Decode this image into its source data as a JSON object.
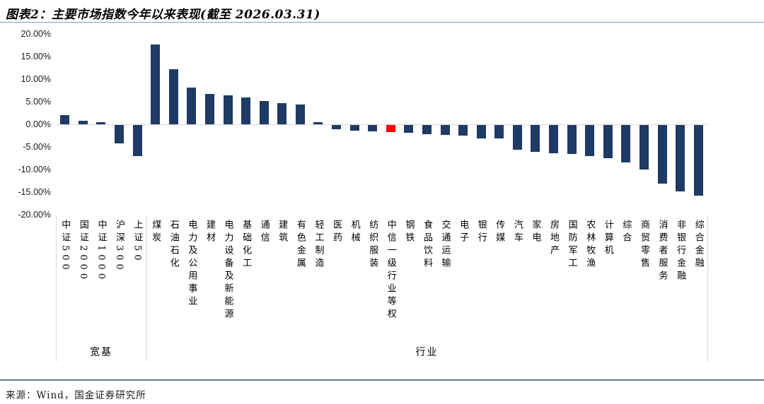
{
  "title": "图表2：主要市场指数今年以来表现(截至 2026.03.31)",
  "source": "来源：Wind，国金证券研究所",
  "colors": {
    "bar": "#1f3a64",
    "highlight": "#ff0000",
    "axis_gray": "#d9d9d9",
    "rule_blue": "#5e8292"
  },
  "chart_data": {
    "type": "bar",
    "title": "主要市场指数今年以来表现(截至 2026.03.31)",
    "xlabel": "",
    "ylabel": "",
    "ylim": [
      -20,
      20
    ],
    "grid": false,
    "legend": false,
    "yticks": [
      "20.00%",
      "15.00%",
      "10.00%",
      "5.00%",
      "0.00%",
      "-5.00%",
      "-10.00%",
      "-15.00%",
      "-20.00%"
    ],
    "categories": [
      "中证500",
      "国证2000",
      "中证1000",
      "沪深300",
      "上证50",
      "煤炭",
      "石油石化",
      "电力及公用事业",
      "建材",
      "电力设备及新能源",
      "基础化工",
      "通信",
      "建筑",
      "有色金属",
      "轻工制造",
      "医药",
      "机械",
      "纺织服装",
      "中信一级行业等权",
      "钢铁",
      "食品饮料",
      "交通运输",
      "电子",
      "银行",
      "传媒",
      "汽车",
      "家电",
      "房地产",
      "国防军工",
      "农林牧渔",
      "计算机",
      "综合",
      "商贸零售",
      "消费者服务",
      "非银行金融",
      "综合金融"
    ],
    "values": [
      2.0,
      0.8,
      0.4,
      -4.1,
      -6.9,
      17.7,
      12.2,
      8.1,
      6.7,
      6.4,
      6.0,
      5.1,
      4.7,
      4.3,
      0.4,
      -1.0,
      -1.3,
      -1.4,
      -1.6,
      -1.7,
      -2.1,
      -2.2,
      -2.4,
      -2.9,
      -3.0,
      -5.5,
      -6.0,
      -6.2,
      -6.4,
      -6.8,
      -7.3,
      -8.3,
      -9.8,
      -12.9,
      -14.7,
      -15.7
    ],
    "highlight_category": "中信一级行业等权",
    "groups": [
      {
        "label": "宽基",
        "span": 5
      },
      {
        "label": "行业",
        "span": 31
      }
    ]
  }
}
